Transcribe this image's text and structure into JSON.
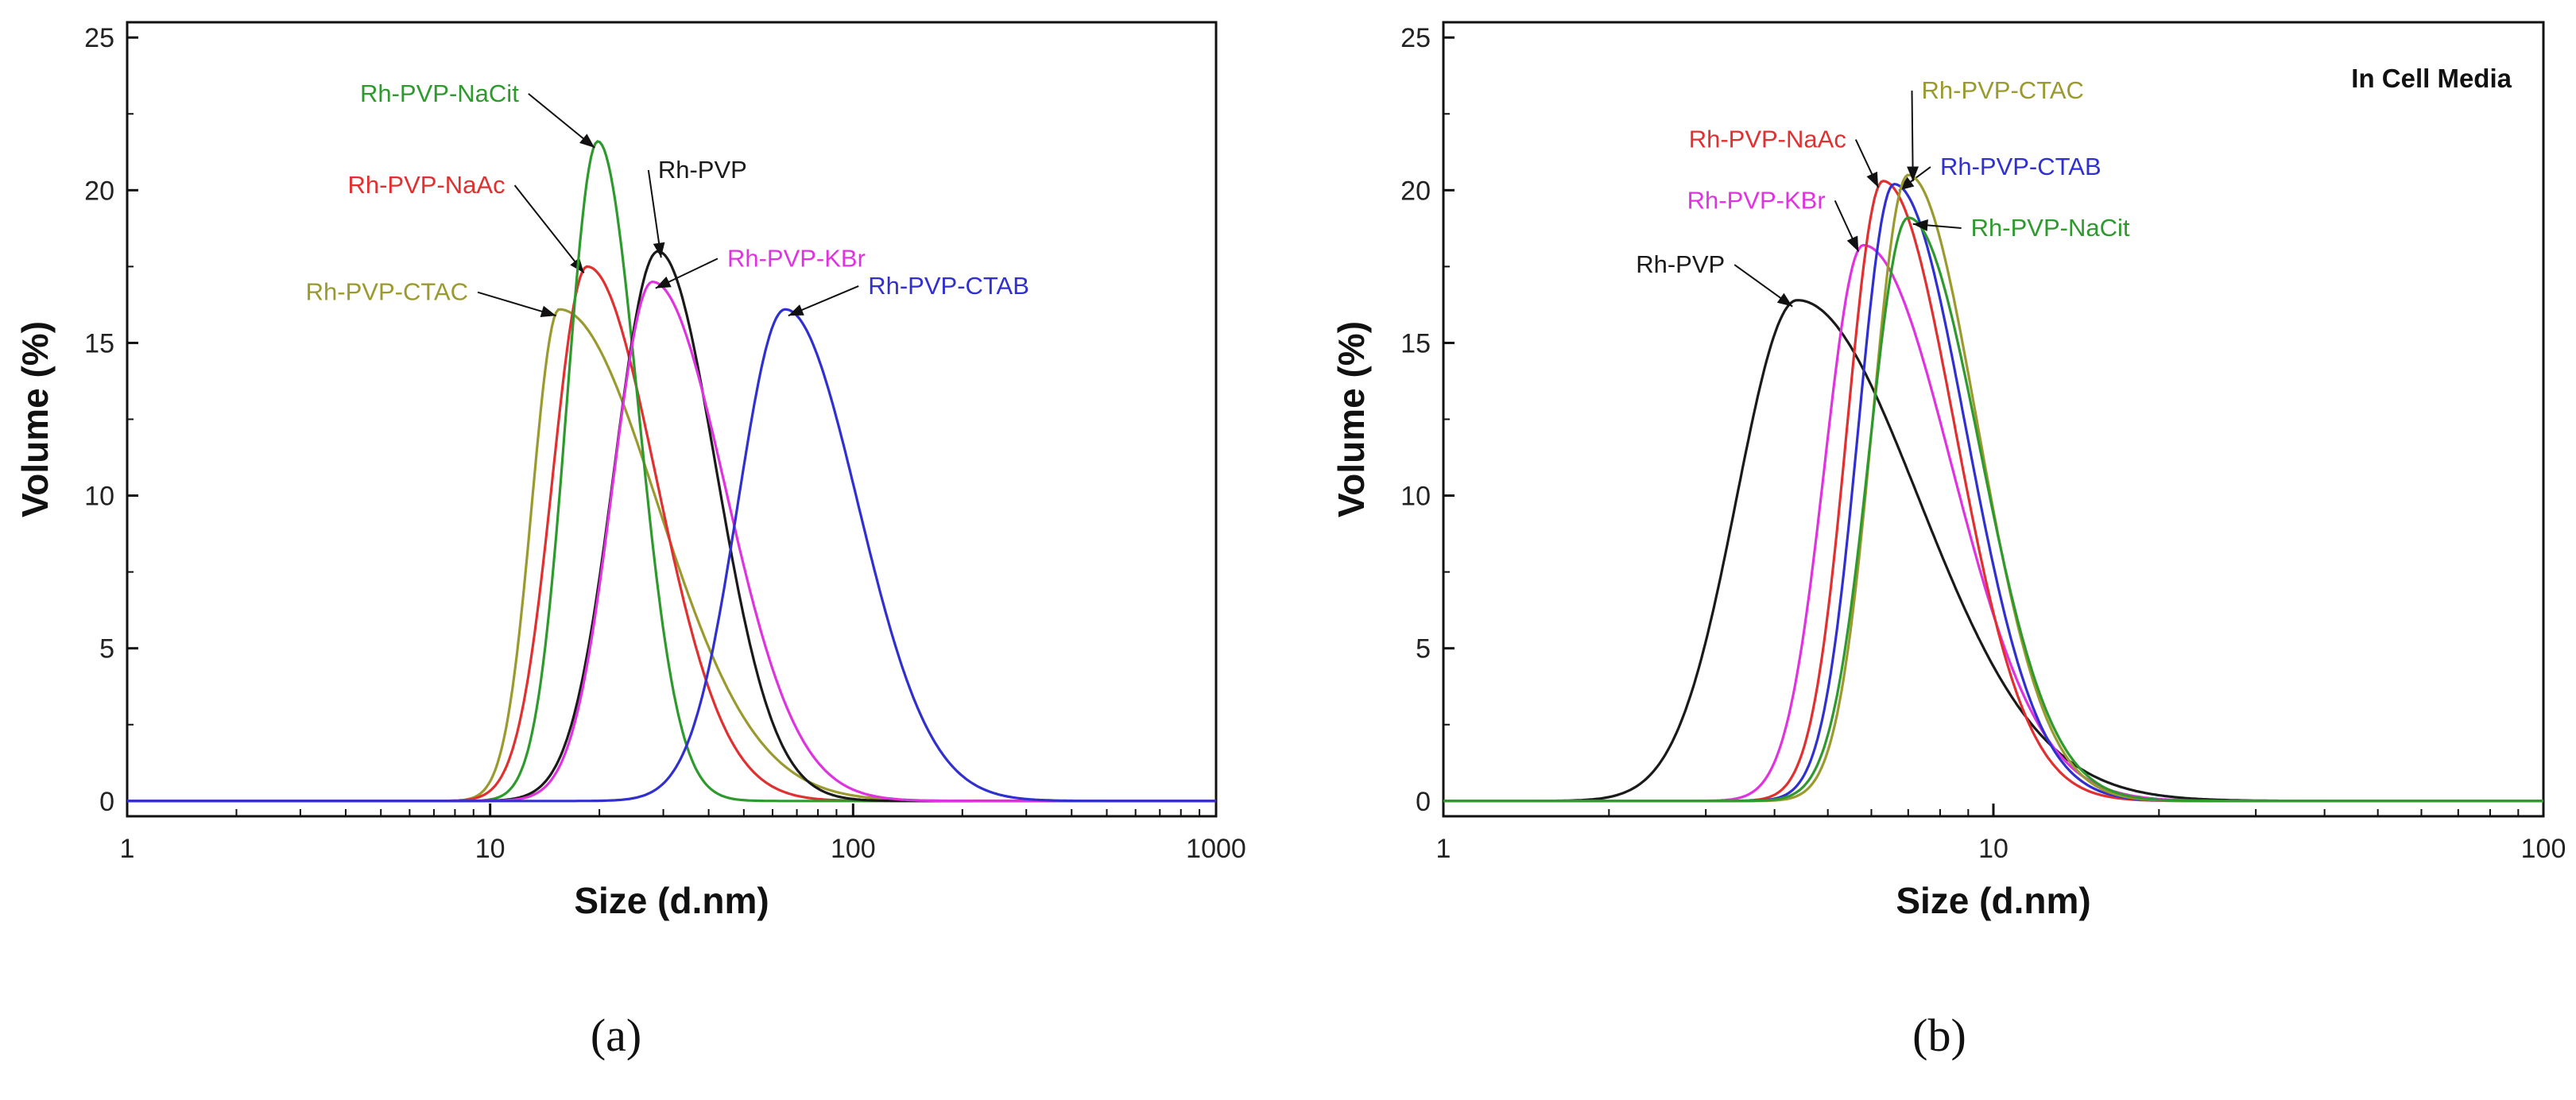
{
  "chart_data": [
    {
      "type": "line",
      "caption": "(a)",
      "title": "",
      "xlabel": "Size (d.nm)",
      "ylabel": "Volume (%)",
      "xscale": "log",
      "xlim": [
        1,
        1000
      ],
      "ylim": [
        -0.5,
        25.5
      ],
      "xticks": [
        1,
        10,
        100,
        1000
      ],
      "xtick_labels": [
        "1",
        "10",
        "100",
        "1000"
      ],
      "yticks": [
        0,
        5,
        10,
        15,
        20,
        25
      ],
      "ytick_labels": [
        "0",
        "5",
        "10",
        "15",
        "20",
        "25"
      ],
      "series": [
        {
          "name": "Rh-PVP-CTAC",
          "color": "#9a9a2e",
          "peak_x": 15.5,
          "peak_y": 16.1,
          "sigma_left": 0.075,
          "sigma_right": 0.27,
          "label": "Rh-PVP-CTAC",
          "label_anchor": "end",
          "label_x": 8.7,
          "label_y": 16.4
        },
        {
          "name": "Rh-PVP-NaAc",
          "color": "#e03030",
          "peak_x": 18.5,
          "peak_y": 17.5,
          "sigma_left": 0.095,
          "sigma_right": 0.19,
          "label": "Rh-PVP-NaAc",
          "label_anchor": "end",
          "label_x": 11.0,
          "label_y": 19.9
        },
        {
          "name": "Rh-PVP-NaCit",
          "color": "#2e9a2e",
          "peak_x": 19.8,
          "peak_y": 21.6,
          "sigma_left": 0.085,
          "sigma_right": 0.11,
          "label": "Rh-PVP-NaCit",
          "label_anchor": "end",
          "label_x": 12.0,
          "label_y": 22.9
        },
        {
          "name": "Rh-PVP",
          "color": "#1a1a1a",
          "peak_x": 29.0,
          "peak_y": 18.0,
          "sigma_left": 0.12,
          "sigma_right": 0.16,
          "label": "Rh-PVP",
          "label_anchor": "start",
          "label_x": 29.0,
          "label_y": 20.4
        },
        {
          "name": "Rh-PVP-KBr",
          "color": "#e033e0",
          "peak_x": 28.0,
          "peak_y": 17.0,
          "sigma_left": 0.11,
          "sigma_right": 0.2,
          "label": "Rh-PVP-KBr",
          "label_anchor": "start",
          "label_x": 45.0,
          "label_y": 17.5
        },
        {
          "name": "Rh-PVP-CTAB",
          "color": "#3030d0",
          "peak_x": 65.0,
          "peak_y": 16.1,
          "sigma_left": 0.13,
          "sigma_right": 0.2,
          "label": "Rh-PVP-CTAB",
          "label_anchor": "start",
          "label_x": 110.0,
          "label_y": 16.6
        }
      ]
    },
    {
      "type": "line",
      "caption": "(b)",
      "title": "In Cell Media",
      "xlabel": "Size (d.nm)",
      "ylabel": "Volume (%)",
      "xscale": "log",
      "xlim": [
        1,
        100
      ],
      "ylim": [
        -0.5,
        25.5
      ],
      "xticks": [
        1,
        10,
        100
      ],
      "xtick_labels": [
        "1",
        "10",
        "100"
      ],
      "yticks": [
        0,
        5,
        10,
        15,
        20,
        25
      ],
      "ytick_labels": [
        "0",
        "5",
        "10",
        "15",
        "20",
        "25"
      ],
      "series": [
        {
          "name": "Rh-PVP",
          "color": "#1a1a1a",
          "peak_x": 4.4,
          "peak_y": 16.4,
          "sigma_left": 0.11,
          "sigma_right": 0.22,
          "label": "Rh-PVP",
          "label_anchor": "end",
          "label_x": 3.25,
          "label_y": 17.3
        },
        {
          "name": "Rh-PVP-KBr",
          "color": "#e033e0",
          "peak_x": 5.8,
          "peak_y": 18.2,
          "sigma_left": 0.07,
          "sigma_right": 0.16,
          "label": "Rh-PVP-KBr",
          "label_anchor": "end",
          "label_x": 4.95,
          "label_y": 19.4
        },
        {
          "name": "Rh-PVP-NaAc",
          "color": "#e03030",
          "peak_x": 6.3,
          "peak_y": 20.3,
          "sigma_left": 0.065,
          "sigma_right": 0.13,
          "label": "Rh-PVP-NaAc",
          "label_anchor": "end",
          "label_x": 5.4,
          "label_y": 21.4
        },
        {
          "name": "Rh-PVP-CTAB",
          "color": "#3030d0",
          "peak_x": 6.6,
          "peak_y": 20.2,
          "sigma_left": 0.065,
          "sigma_right": 0.13,
          "label": "Rh-PVP-CTAB",
          "label_anchor": "start",
          "label_x": 8.0,
          "label_y": 20.5
        },
        {
          "name": "Rh-PVP-CTAC",
          "color": "#9a9a2e",
          "peak_x": 7.0,
          "peak_y": 20.5,
          "sigma_left": 0.065,
          "sigma_right": 0.125,
          "label": "Rh-PVP-CTAC",
          "label_anchor": "start",
          "label_x": 7.4,
          "label_y": 23.0
        },
        {
          "name": "Rh-PVP-NaCit",
          "color": "#2e9a2e",
          "peak_x": 7.0,
          "peak_y": 19.1,
          "sigma_left": 0.07,
          "sigma_right": 0.13,
          "label": "Rh-PVP-NaCit",
          "label_anchor": "start",
          "label_x": 9.1,
          "label_y": 18.5
        }
      ]
    }
  ]
}
